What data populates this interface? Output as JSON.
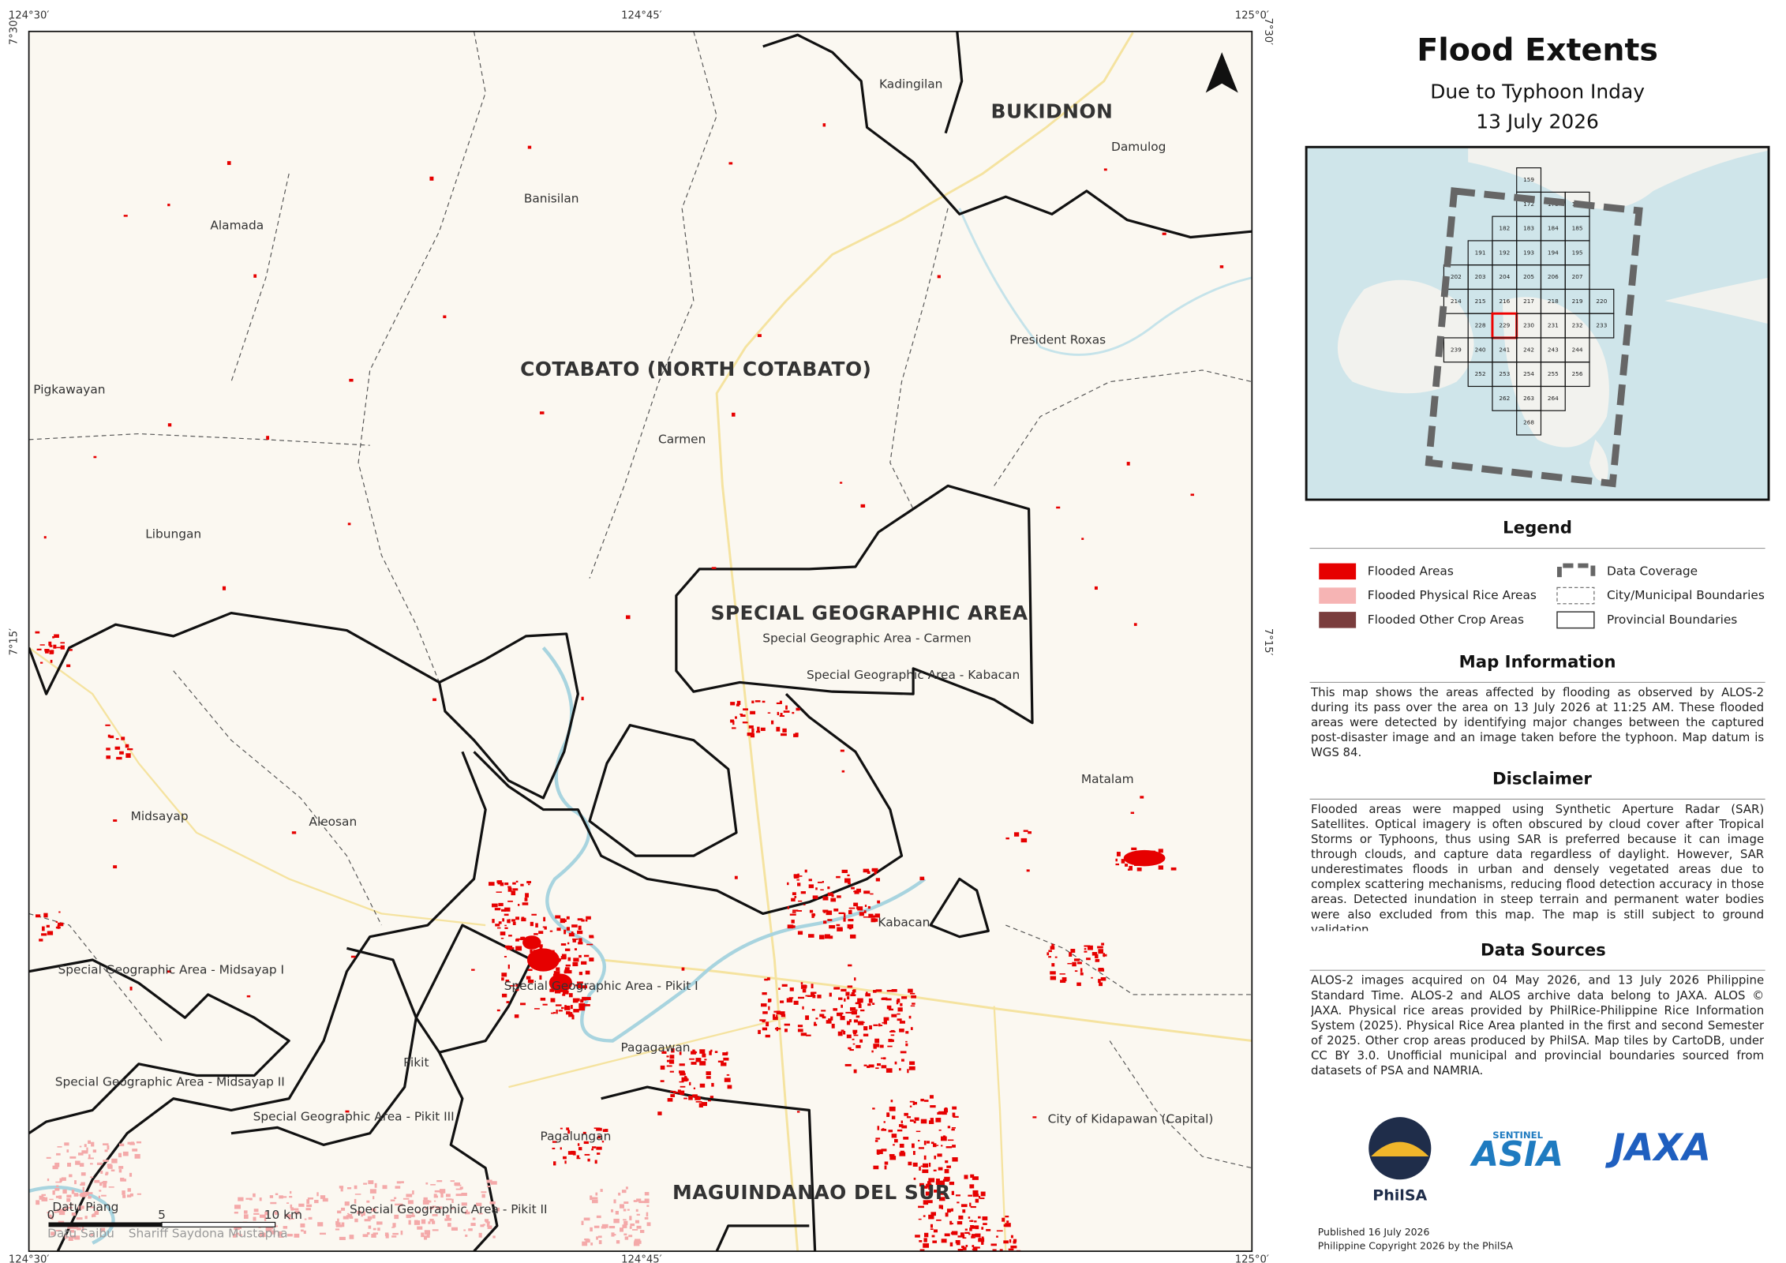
{
  "title": "Flood Extents",
  "subtitle": "Due to Typhoon Inday",
  "date": "13 July 2026",
  "coordinates": {
    "top": [
      "124°30′",
      "124°45′",
      "125°0′"
    ],
    "bottom": [
      "124°30′",
      "124°45′",
      "125°0′"
    ],
    "left": [
      "7°30′",
      "7°15′"
    ],
    "right": [
      "7°30′",
      "7°15′"
    ]
  },
  "map": {
    "regions": [
      "BUKIDNON",
      "COTABATO (NORTH COTABATO)",
      "SPECIAL GEOGRAPHIC AREA",
      "MAGUINDANAO DEL SUR"
    ],
    "places": [
      "Kadingilan",
      "Damulog",
      "Banisilan",
      "Alamada",
      "President Roxas",
      "Pigkawayan",
      "Carmen",
      "Libungan",
      "Special Geographic Area - Carmen",
      "Special Geographic Area - Kabacan",
      "Matalam",
      "Midsayap",
      "Aleosan",
      "Kabacan",
      "Special Geographic Area - Midsayap I",
      "Special Geographic Area - Pikit I",
      "Pagagawan",
      "Pikit",
      "Special Geographic Area - Midsayap II",
      "Special Geographic Area - Pikit III",
      "City of Kidapawan (Capital)",
      "Pagalungan",
      "Datu Piang",
      "Special Geographic Area - Pikit II",
      "Datu Saibu",
      "Shariff Saydona Mustapha"
    ],
    "scale": [
      "0",
      "5",
      "10 km"
    ]
  },
  "inset": {
    "tiles": [
      159,
      172,
      173,
      174,
      182,
      183,
      184,
      185,
      191,
      192,
      193,
      194,
      195,
      202,
      203,
      204,
      205,
      206,
      207,
      214,
      215,
      216,
      217,
      218,
      219,
      220,
      228,
      229,
      230,
      231,
      232,
      233,
      239,
      240,
      241,
      242,
      243,
      244,
      252,
      253,
      254,
      255,
      256,
      262,
      263,
      264,
      268
    ]
  },
  "legend": {
    "title": "Legend",
    "items": [
      "Flooded Areas",
      "Flooded Physical Rice Areas",
      "Flooded Other Crop Areas",
      "Data Coverage",
      "City/Municipal Boundaries",
      "Provincial Boundaries"
    ]
  },
  "map_information": {
    "title": "Map Information",
    "text": "This map shows the areas affected by flooding as observed by ALOS-2 during its pass over the area on 13 July 2026 at 11:25 AM. These flooded areas were detected by identifying major changes between the captured post-disaster image and an image taken before the typhoon. Map datum is WGS 84."
  },
  "disclaimer": {
    "title": "Disclaimer",
    "text": "Flooded areas were mapped using Synthetic Aperture Radar (SAR) Satellites. Optical imagery is often obscured by cloud cover after Tropical Storms or Typhoons, thus using SAR is preferred because it can image through clouds, and capture data regardless of daylight. However, SAR underestimates floods in urban and densely vegetated areas due to complex scattering mechanisms, reducing flood detection accuracy in those areas. Detected inundation in steep terrain and permanent water bodies were also excluded from this map. The map is still subject to ground validation."
  },
  "data_sources": {
    "title": "Data Sources",
    "text": "ALOS-2 images acquired on 04 May 2026, and 13 July 2026 Philippine Standard Time. ALOS-2 and ALOS archive data belong to JAXA. ALOS © JAXA. Physical rice areas provided by PhilRice-Philippine Rice Information System (2025). Physical Rice Area planted in the first and second Semester of 2025. Other crop areas produced by PhilSA. Map tiles by CartoDB, under CC BY 3.0. Unofficial municipal and provincial boundaries sourced from datasets of PSA and NAMRIA."
  },
  "logos": {
    "philsa": "PhilSA",
    "sentinel": "SENTINEL",
    "asia": "ASIA",
    "jaxa": "JAXA"
  },
  "footer": [
    "Published 16 July 2026",
    "Philippine Copyright 2026 by the PhilSA"
  ]
}
